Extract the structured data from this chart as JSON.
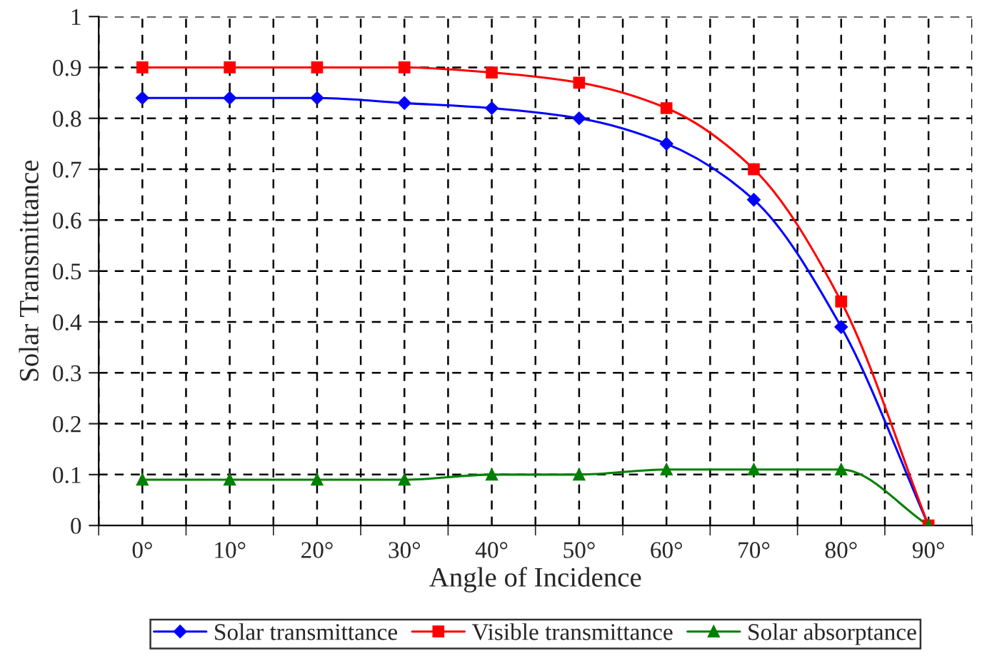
{
  "chart_data": {
    "type": "line",
    "xlabel": "Angle of Incidence",
    "ylabel": "Solar Transmittance",
    "categories": [
      "0°",
      "10°",
      "20°",
      "30°",
      "40°",
      "50°",
      "60°",
      "70°",
      "80°",
      "90°"
    ],
    "series": [
      {
        "name": "Solar transmittance",
        "color": "#0000ff",
        "marker": "diamond",
        "values": [
          0.84,
          0.84,
          0.84,
          0.83,
          0.82,
          0.8,
          0.75,
          0.64,
          0.39,
          0
        ]
      },
      {
        "name": "Visible transmittance",
        "color": "#ff0000",
        "marker": "square",
        "values": [
          0.9,
          0.9,
          0.9,
          0.9,
          0.89,
          0.87,
          0.82,
          0.7,
          0.44,
          0
        ]
      },
      {
        "name": "Solar absorptance",
        "color": "#008000",
        "marker": "triangle",
        "values": [
          0.09,
          0.09,
          0.09,
          0.09,
          0.1,
          0.1,
          0.11,
          0.11,
          0.11,
          0
        ]
      }
    ],
    "ylim": [
      0,
      1
    ],
    "yticks": [
      0,
      0.1,
      0.2,
      0.3,
      0.4,
      0.5,
      0.6,
      0.7,
      0.8,
      0.9,
      1
    ],
    "grid": true,
    "legend": "bottom",
    "line_style": "solid"
  }
}
